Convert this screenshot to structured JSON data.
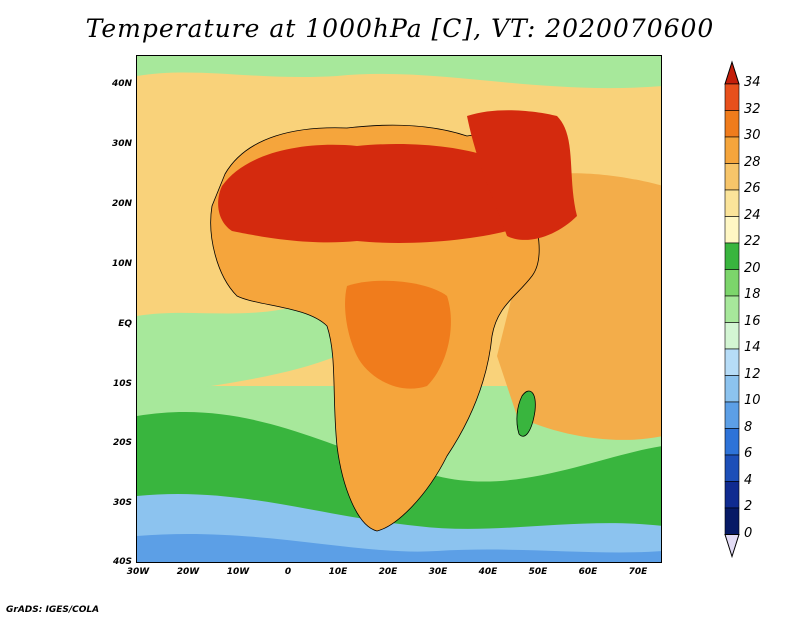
{
  "title": "Temperature at 1000hPa [C], VT: 2020070600",
  "credit": "GrADS: IGES/COLA",
  "axes": {
    "lon_labels": [
      "30W",
      "20W",
      "10W",
      "0",
      "10E",
      "20E",
      "30E",
      "40E",
      "50E",
      "60E",
      "70E"
    ],
    "lat_labels": [
      "40N",
      "30N",
      "20N",
      "10N",
      "EQ",
      "10S",
      "20S",
      "30S",
      "40S"
    ],
    "lon_range": [
      -30,
      75
    ],
    "lat_range": [
      -40,
      45
    ]
  },
  "colorbar": {
    "labels": [
      "34",
      "32",
      "30",
      "28",
      "26",
      "24",
      "22",
      "20",
      "18",
      "16",
      "14",
      "12",
      "10",
      "8",
      "6",
      "4",
      "2",
      "0"
    ],
    "colors": [
      "#d42a0e",
      "#e8501c",
      "#f07c1c",
      "#f5a53c",
      "#f7c56a",
      "#fbe49a",
      "#fff7c4",
      "#39b53e",
      "#7cd56b",
      "#a7e89b",
      "#d3f5d3",
      "#b6dcf7",
      "#8cc3ef",
      "#5c9fe6",
      "#2e73d8",
      "#1d4fb8",
      "#102b90",
      "#071a66"
    ],
    "top_arrow_color": "#c41e0a",
    "bottom_arrow_color": "#e3dcf5"
  },
  "map_colors": {
    "ocean_warm": "#f3ad4a",
    "ocean_mid": "#f9d27a",
    "cool_green": "#39b53e",
    "light_green": "#a7e89b",
    "cold_blue": "#8cc3ef",
    "deep_blue": "#5c9fe6",
    "sahara": "#d42a0e",
    "hot_orange": "#f07c1c",
    "savanna": "#f5a53c",
    "coast_line": "#000000"
  }
}
